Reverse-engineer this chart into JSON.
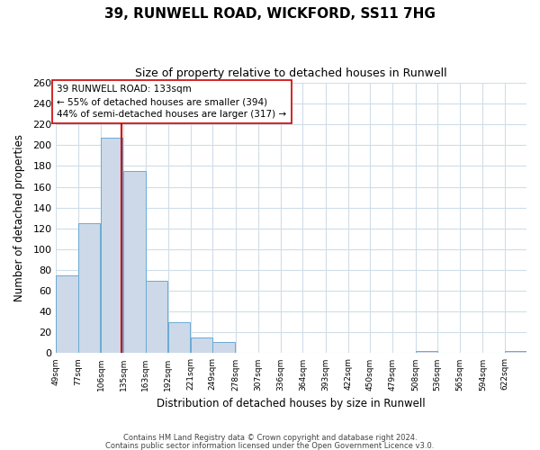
{
  "title": "39, RUNWELL ROAD, WICKFORD, SS11 7HG",
  "subtitle": "Size of property relative to detached houses in Runwell",
  "xlabel": "Distribution of detached houses by size in Runwell",
  "ylabel": "Number of detached properties",
  "bar_color": "#cdd9e8",
  "bar_edge_color": "#6aaad4",
  "bin_labels": [
    "49sqm",
    "77sqm",
    "106sqm",
    "135sqm",
    "163sqm",
    "192sqm",
    "221sqm",
    "249sqm",
    "278sqm",
    "307sqm",
    "336sqm",
    "364sqm",
    "393sqm",
    "422sqm",
    "450sqm",
    "479sqm",
    "508sqm",
    "536sqm",
    "565sqm",
    "594sqm",
    "622sqm"
  ],
  "bin_edges": [
    49,
    77,
    106,
    135,
    163,
    192,
    221,
    249,
    278,
    307,
    336,
    364,
    393,
    422,
    450,
    479,
    508,
    536,
    565,
    594,
    622
  ],
  "bin_width": 28,
  "bar_heights": [
    75,
    125,
    207,
    175,
    70,
    30,
    15,
    11,
    0,
    0,
    0,
    0,
    0,
    0,
    0,
    0,
    2,
    0,
    0,
    0,
    2
  ],
  "property_size": 133,
  "vline_color": "#cc0000",
  "annotation_line1": "39 RUNWELL ROAD: 133sqm",
  "annotation_line2": "← 55% of detached houses are smaller (394)",
  "annotation_line3": "44% of semi-detached houses are larger (317) →",
  "annotation_box_color": "#ffffff",
  "annotation_box_edge": "#cc0000",
  "ylim": [
    0,
    260
  ],
  "yticks": [
    0,
    20,
    40,
    60,
    80,
    100,
    120,
    140,
    160,
    180,
    200,
    220,
    240,
    260
  ],
  "grid_color": "#d0dde8",
  "background_color": "#ffffff",
  "footer1": "Contains HM Land Registry data © Crown copyright and database right 2024.",
  "footer2": "Contains public sector information licensed under the Open Government Licence v3.0."
}
